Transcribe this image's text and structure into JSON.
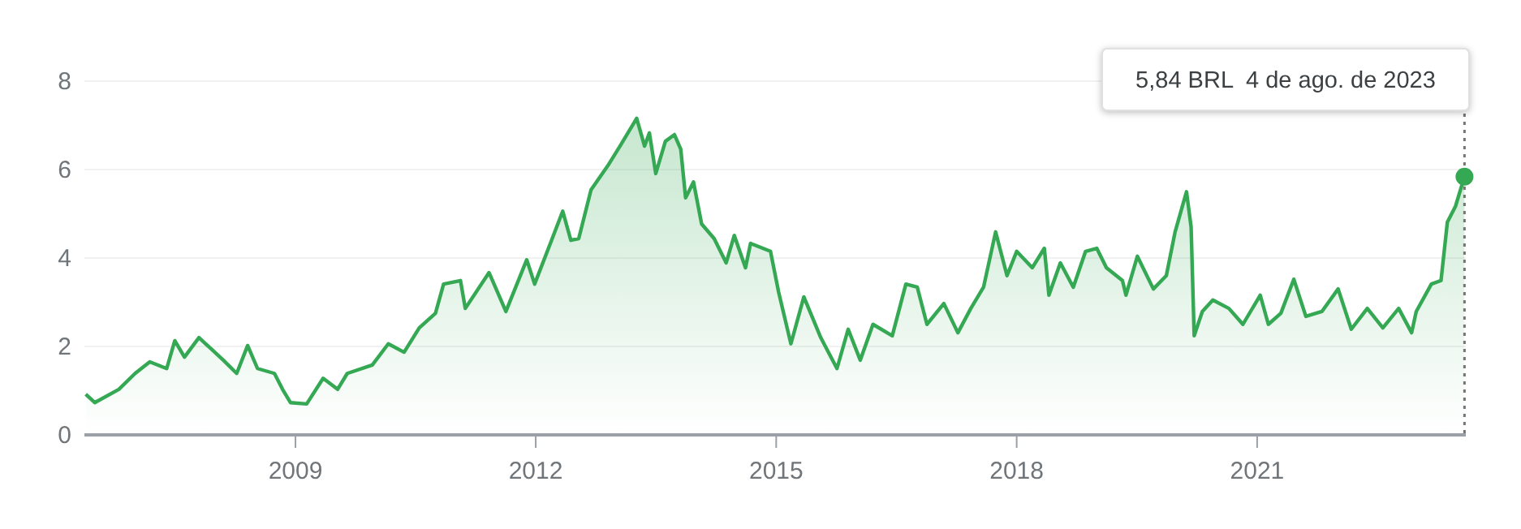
{
  "chart_data": {
    "type": "area",
    "x": [
      "2006-05-21",
      "2006-07-01",
      "2006-10-19",
      "2007-01-01",
      "2007-03-09",
      "2007-05-25",
      "2007-07-01",
      "2007-08-14",
      "2007-10-19",
      "2008-02-07",
      "2008-04-08",
      "2008-05-28",
      "2008-07-12",
      "2008-09-27",
      "2008-11-03",
      "2008-12-09",
      "2009-02-21",
      "2009-05-07",
      "2009-07-12",
      "2009-08-25",
      "2009-12-17",
      "2010-02-28",
      "2010-05-11",
      "2010-07-19",
      "2010-10-01",
      "2010-11-07",
      "2011-01-23",
      "2011-02-14",
      "2011-06-02",
      "2011-08-18",
      "2011-11-21",
      "2011-12-27",
      "2012-03-13",
      "2012-05-03",
      "2012-06-09",
      "2012-07-15",
      "2012-09-09",
      "2012-11-25",
      "2013-01-19",
      "2013-04-05",
      "2013-05-11",
      "2013-06-02",
      "2013-07-01",
      "2013-08-14",
      "2013-09-24",
      "2013-10-23",
      "2013-11-14",
      "2013-12-20",
      "2014-01-26",
      "2014-03-24",
      "2014-05-18",
      "2014-06-24",
      "2014-08-14",
      "2014-09-06",
      "2014-12-06",
      "2015-01-12",
      "2015-03-09",
      "2015-05-07",
      "2015-07-23",
      "2015-10-05",
      "2015-11-25",
      "2016-01-19",
      "2016-03-17",
      "2016-06-13",
      "2016-08-14",
      "2016-10-05",
      "2016-11-18",
      "2017-02-03",
      "2017-04-08",
      "2017-06-06",
      "2017-08-03",
      "2017-09-27",
      "2017-11-18",
      "2018-01-01",
      "2018-03-13",
      "2018-05-07",
      "2018-05-28",
      "2018-07-19",
      "2018-09-16",
      "2018-11-11",
      "2019-01-01",
      "2019-02-14",
      "2019-04-28",
      "2019-05-14",
      "2019-07-05",
      "2019-09-16",
      "2019-11-14",
      "2019-12-24",
      "2020-02-14",
      "2020-03-06",
      "2020-03-20",
      "2020-04-26",
      "2020-06-13",
      "2020-08-25",
      "2020-10-28",
      "2021-01-15",
      "2021-02-21",
      "2021-04-19",
      "2021-06-17",
      "2021-08-11",
      "2021-10-23",
      "2022-01-05",
      "2022-03-06",
      "2022-05-18",
      "2022-07-28",
      "2022-10-08",
      "2022-12-06",
      "2022-12-27",
      "2023-03-06",
      "2023-04-19",
      "2023-05-18",
      "2023-06-24",
      "2023-08-04"
    ],
    "series": [
      {
        "color": "#34a853",
        "values": [
          0.92,
          0.73,
          1.03,
          1.39,
          1.65,
          1.5,
          2.13,
          1.76,
          2.2,
          1.69,
          1.39,
          2.02,
          1.5,
          1.39,
          1.03,
          0.73,
          0.7,
          1.28,
          1.03,
          1.39,
          1.58,
          2.06,
          1.87,
          2.42,
          2.75,
          3.41,
          3.49,
          2.86,
          3.67,
          2.79,
          3.96,
          3.41,
          4.4,
          5.06,
          4.4,
          4.44,
          5.54,
          6.09,
          6.53,
          7.16,
          6.53,
          6.83,
          5.91,
          6.64,
          6.79,
          6.46,
          5.36,
          5.72,
          4.77,
          4.44,
          3.89,
          4.51,
          3.78,
          4.33,
          4.15,
          3.23,
          2.06,
          3.12,
          2.2,
          1.5,
          2.39,
          1.69,
          2.5,
          2.24,
          3.41,
          3.34,
          2.5,
          2.97,
          2.31,
          2.86,
          3.34,
          4.59,
          3.6,
          4.15,
          3.78,
          4.22,
          3.16,
          3.89,
          3.34,
          4.15,
          4.22,
          3.78,
          3.49,
          3.16,
          4.04,
          3.3,
          3.6,
          4.59,
          5.5,
          4.7,
          2.24,
          2.79,
          3.05,
          2.86,
          2.5,
          3.16,
          2.5,
          2.75,
          3.52,
          2.68,
          2.79,
          3.3,
          2.39,
          2.86,
          2.42,
          2.86,
          2.31,
          2.79,
          3.41,
          3.49,
          4.81,
          5.17,
          5.84
        ]
      }
    ],
    "xlim": [
      "2006-05-15",
      "2023-08-10"
    ],
    "xticks": [
      "2009",
      "2012",
      "2015",
      "2018",
      "2021"
    ],
    "ylim": [
      0,
      8
    ],
    "yticks": [
      0,
      2,
      4,
      6,
      8
    ],
    "grid": "y",
    "ref_lines": [
      {
        "axis": "x",
        "value": "2023-08-04",
        "line_style": "dotted",
        "color": "#757575"
      }
    ],
    "annotations": [
      "5,84 BRL  4 de ago. de 2023"
    ]
  }
}
